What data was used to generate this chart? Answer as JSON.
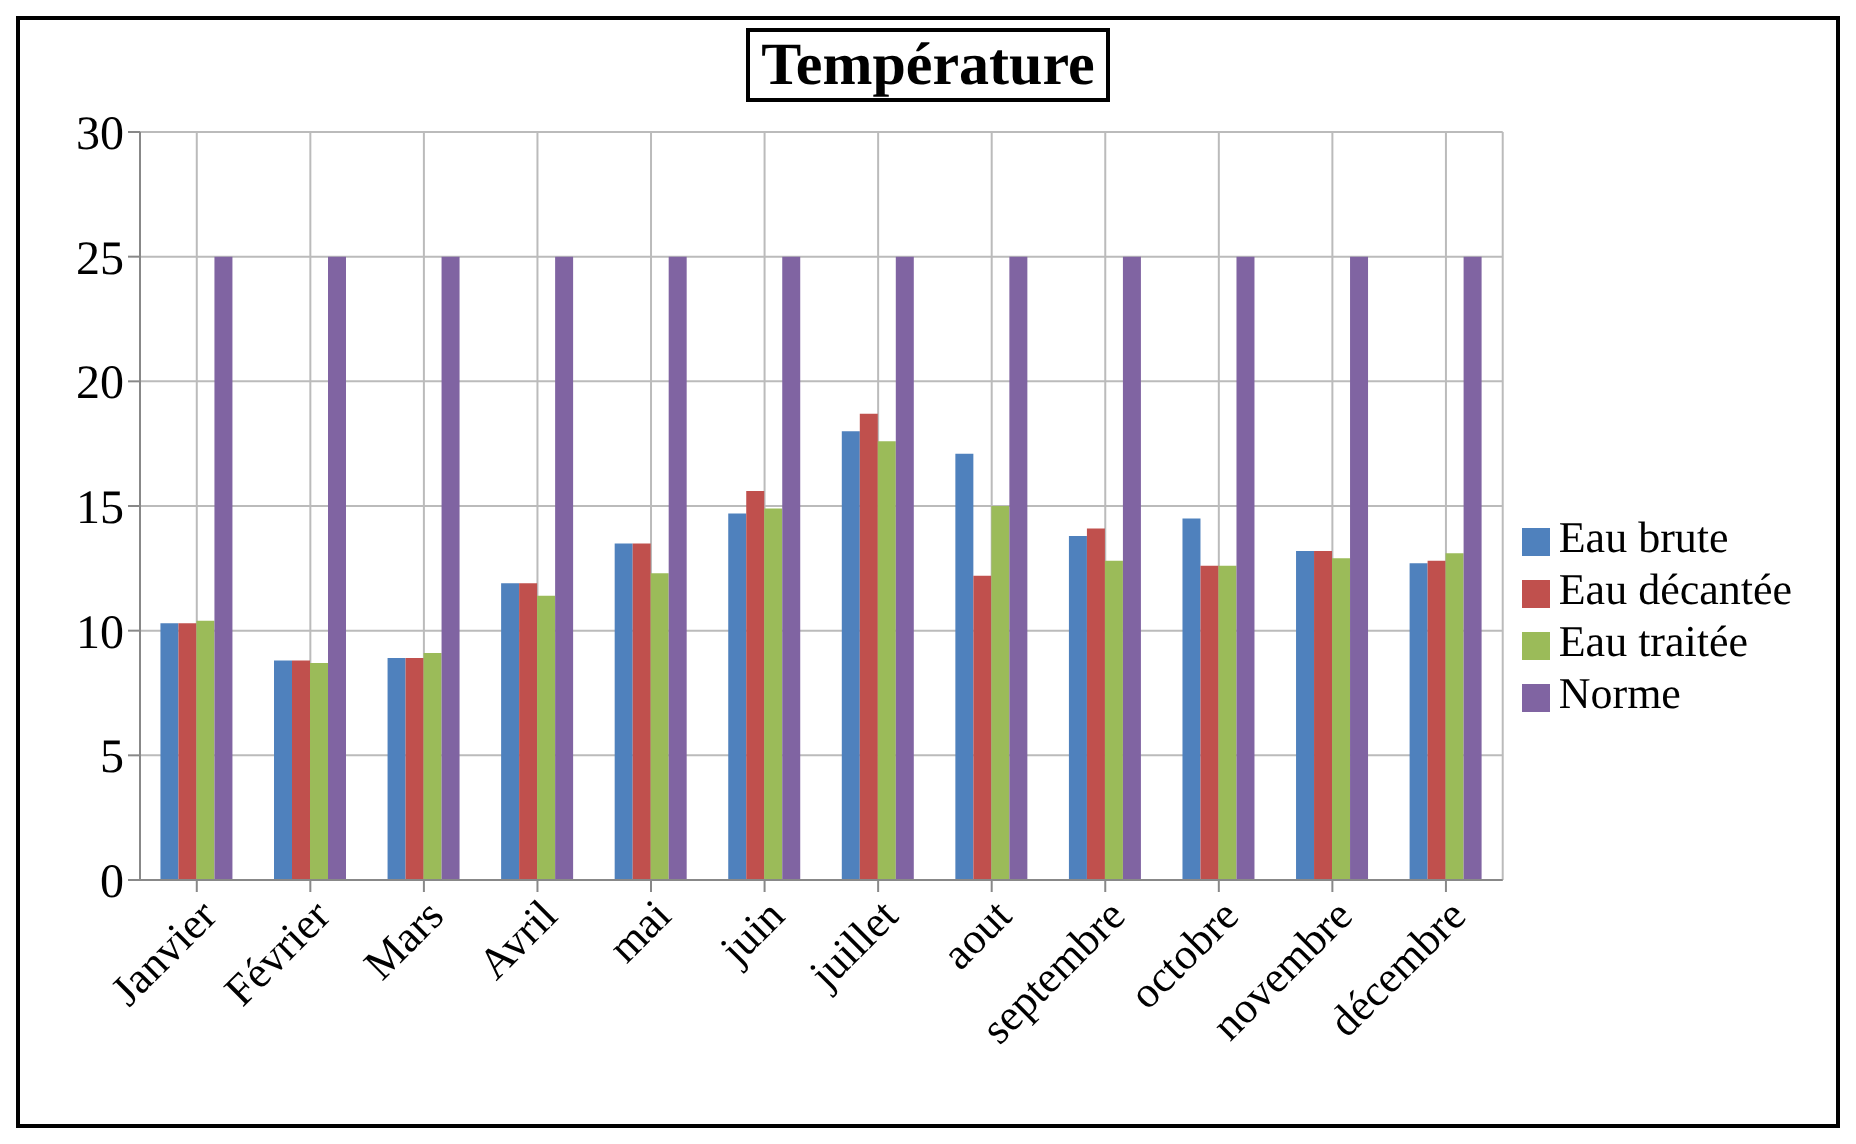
{
  "chart_data": {
    "type": "bar",
    "title": "Température",
    "categories": [
      "Janvier",
      "Février",
      "Mars",
      "Avril",
      "mai",
      "juin",
      "juillet",
      "aout",
      "septembre",
      "octobre",
      "novembre",
      "décembre"
    ],
    "series": [
      {
        "name": "Eau brute",
        "color": "#4f81bd",
        "values": [
          10.3,
          8.8,
          8.9,
          11.9,
          13.5,
          14.7,
          18,
          17.1,
          13.8,
          14.5,
          13.2,
          12.7
        ]
      },
      {
        "name": "Eau décantée",
        "color": "#c0504d",
        "values": [
          10.3,
          8.8,
          8.9,
          11.9,
          13.5,
          15.6,
          18.7,
          12.2,
          14.1,
          12.6,
          13.2,
          12.8
        ]
      },
      {
        "name": "Eau traitée",
        "color": "#9bbb59",
        "values": [
          10.4,
          8.7,
          9.1,
          11.4,
          12.3,
          14.9,
          17.6,
          15,
          12.8,
          12.6,
          12.9,
          13.1
        ]
      },
      {
        "name": "Norme",
        "color": "#8064a2",
        "values": [
          25,
          25,
          25,
          25,
          25,
          25,
          25,
          25,
          25,
          25,
          25,
          25
        ]
      }
    ],
    "ylim": [
      0,
      30
    ],
    "yticks": [
      0,
      5,
      10,
      15,
      20,
      25,
      30
    ],
    "grid": true,
    "legend": "right"
  }
}
